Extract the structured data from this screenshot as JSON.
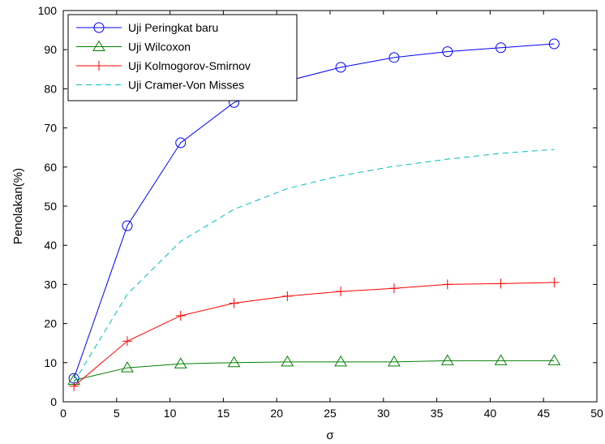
{
  "chart_data": {
    "type": "line",
    "xlabel": "σ",
    "ylabel": "Penolakan(%)",
    "xlim": [
      0,
      50
    ],
    "ylim": [
      0,
      100
    ],
    "xticks": [
      0,
      5,
      10,
      15,
      20,
      25,
      30,
      35,
      40,
      45,
      50
    ],
    "yticks": [
      0,
      10,
      20,
      30,
      40,
      50,
      60,
      70,
      80,
      90,
      100
    ],
    "grid": false,
    "legend_position": "top-left",
    "series": [
      {
        "name": "Uji Peringkat baru",
        "color": "#0000ff",
        "line": "solid",
        "marker": "circle",
        "x": [
          1,
          6,
          11,
          16,
          21,
          26,
          31,
          36,
          41,
          46
        ],
        "y": [
          6,
          45,
          66.2,
          76.5,
          82,
          85.5,
          88,
          89.5,
          90.5,
          91.5
        ]
      },
      {
        "name": "Uji Wilcoxon",
        "color": "#008000",
        "line": "solid",
        "marker": "triangle",
        "x": [
          1,
          6,
          11,
          16,
          21,
          26,
          31,
          36,
          41,
          46
        ],
        "y": [
          5.5,
          8.7,
          9.7,
          10,
          10.2,
          10.2,
          10.2,
          10.5,
          10.5,
          10.5
        ]
      },
      {
        "name": "Uji Kolmogorov-Smirnov",
        "color": "#ff0000",
        "line": "solid",
        "marker": "plus",
        "x": [
          1,
          6,
          11,
          16,
          21,
          26,
          31,
          36,
          41,
          46
        ],
        "y": [
          4,
          15.5,
          22,
          25.2,
          27,
          28.2,
          29,
          30,
          30.2,
          30.5
        ]
      },
      {
        "name": "Uji Cramer-Von Misses",
        "color": "#00bfbf",
        "line": "dashed",
        "marker": "none",
        "x": [
          1,
          6,
          11,
          16,
          21,
          26,
          31,
          36,
          41,
          46
        ],
        "y": [
          5,
          27.5,
          41,
          49.2,
          54.5,
          57.8,
          60.2,
          62,
          63.5,
          64.5
        ]
      }
    ]
  }
}
